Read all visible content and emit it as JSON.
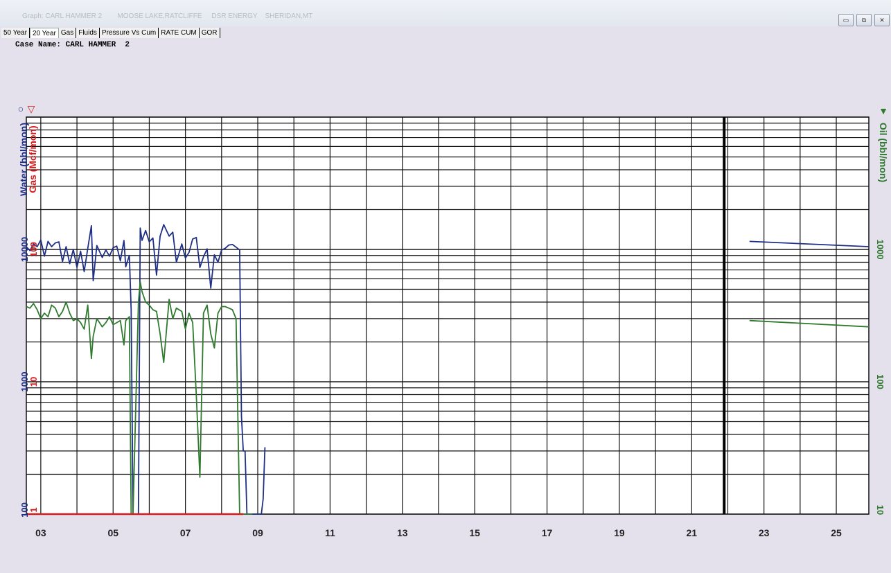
{
  "window": {
    "title": "Graph: CARL HAMMER 2        MOOSE LAKE,RATCLIFFE     DSR ENERGY    SHERIDAN,MT",
    "buttons": [
      "minimize",
      "restore",
      "close"
    ]
  },
  "tabs": [
    {
      "label": "50 Year",
      "active": false
    },
    {
      "label": "20 Year",
      "active": true
    },
    {
      "label": "Gas",
      "active": false
    },
    {
      "label": "Fluids",
      "active": false
    },
    {
      "label": "Pressure Vs Cum",
      "active": false
    },
    {
      "label": "RATE CUM",
      "active": false
    },
    {
      "label": "GOR",
      "active": false
    }
  ],
  "case_label": "Case Name: CARL HAMMER  2",
  "colors": {
    "water": "#1f2f86",
    "gas": "#d91a1a",
    "oil": "#2f7a2f",
    "grid": "#111111",
    "plot_bg": "#ffffff"
  },
  "chart_data": {
    "type": "line",
    "left_axis_water": {
      "label": "Water (bbl/mon)",
      "ticks": [
        "10000",
        "1000",
        "100"
      ],
      "color": "#1f2f86"
    },
    "left_axis_gas": {
      "label": "Gas (Mcf/mon)",
      "ticks": [
        "100",
        "10",
        "1"
      ],
      "color": "#d91a1a"
    },
    "right_axis_oil": {
      "label": "Oil (bbl/mon)",
      "ticks": [
        "1000",
        "100",
        "10"
      ],
      "color": "#2f7a2f"
    },
    "left_symbols": [
      "○",
      "▽"
    ],
    "right_symbol": "▼",
    "x_ticks": [
      "03",
      "05",
      "07",
      "09",
      "11",
      "13",
      "15",
      "17",
      "19",
      "21",
      "23",
      "25"
    ],
    "xlim": [
      2002.6,
      2025.9
    ],
    "oil_ylim": [
      10,
      10000
    ],
    "water_ylim": [
      100,
      100000
    ],
    "log_scale": true,
    "grid": true,
    "forecast_divider_year": 2021.9,
    "series": [
      {
        "name": "Water",
        "color": "#1f2f86",
        "x": [
          2002.6,
          2002.7,
          2002.8,
          2002.9,
          2003.0,
          2003.1,
          2003.2,
          2003.3,
          2003.4,
          2003.5,
          2003.6,
          2003.7,
          2003.8,
          2003.9,
          2004.0,
          2004.1,
          2004.2,
          2004.3,
          2004.4,
          2004.45,
          2004.55,
          2004.7,
          2004.8,
          2004.9,
          2005.0,
          2005.1,
          2005.2,
          2005.3,
          2005.35,
          2005.45,
          2005.5,
          2005.55,
          2005.7,
          2005.75,
          2005.8,
          2005.9,
          2006.0,
          2006.1,
          2006.2,
          2006.3,
          2006.4,
          2006.55,
          2006.65,
          2006.75,
          2006.9,
          2007.0,
          2007.1,
          2007.2,
          2007.3,
          2007.4,
          2007.5,
          2007.6,
          2007.7,
          2007.8,
          2007.9,
          2008.0,
          2008.1,
          2008.2,
          2008.3,
          2008.4,
          2008.5,
          2008.55,
          2008.6,
          2008.65,
          2008.7,
          2008.75,
          2008.8,
          2008.85,
          2009.1,
          2009.15,
          2009.2
        ],
        "y": [
          10500,
          9800,
          11000,
          10500,
          11800,
          8900,
          11500,
          10500,
          11200,
          11400,
          8100,
          10500,
          7800,
          10000,
          7300,
          9700,
          6800,
          10200,
          15100,
          5800,
          10700,
          8700,
          9900,
          8900,
          10300,
          10600,
          8200,
          11700,
          7400,
          9000,
          3500,
          90,
          100,
          14500,
          11700,
          13900,
          11400,
          12200,
          6400,
          12600,
          15400,
          12600,
          13500,
          8000,
          11000,
          8600,
          9500,
          12000,
          12300,
          7300,
          8800,
          10100,
          5100,
          9100,
          8000,
          9900,
          10200,
          10800,
          10900,
          10400,
          9900,
          550,
          300,
          300,
          95,
          95,
          95,
          95,
          95,
          130,
          320
        ]
      },
      {
        "name": "Oil",
        "color": "#2f7a2f",
        "x": [
          2002.6,
          2002.7,
          2002.8,
          2002.9,
          2003.0,
          2003.1,
          2003.2,
          2003.3,
          2003.4,
          2003.5,
          2003.6,
          2003.7,
          2003.8,
          2003.9,
          2004.0,
          2004.1,
          2004.2,
          2004.3,
          2004.4,
          2004.45,
          2004.55,
          2004.7,
          2004.8,
          2004.9,
          2005.0,
          2005.1,
          2005.2,
          2005.3,
          2005.35,
          2005.45,
          2005.5,
          2005.55,
          2005.7,
          2005.75,
          2005.8,
          2005.9,
          2006.0,
          2006.1,
          2006.2,
          2006.3,
          2006.4,
          2006.55,
          2006.65,
          2006.75,
          2006.9,
          2007.0,
          2007.1,
          2007.2,
          2007.3,
          2007.4,
          2007.5,
          2007.6,
          2007.7,
          2007.8,
          2007.9,
          2008.0,
          2008.1,
          2008.2,
          2008.3,
          2008.4,
          2008.5,
          2008.55,
          2008.6,
          2008.65,
          2008.7,
          2008.8,
          2008.85
        ],
        "y": [
          370,
          360,
          390,
          350,
          300,
          330,
          310,
          380,
          360,
          310,
          340,
          400,
          330,
          290,
          300,
          280,
          250,
          380,
          150,
          220,
          300,
          260,
          280,
          310,
          270,
          280,
          290,
          190,
          290,
          310,
          10,
          10,
          400,
          570,
          480,
          400,
          380,
          350,
          340,
          230,
          140,
          420,
          300,
          360,
          340,
          250,
          330,
          280,
          80,
          19,
          330,
          380,
          230,
          180,
          330,
          370,
          370,
          360,
          350,
          300,
          10,
          10,
          10,
          10,
          10,
          10,
          10
        ]
      },
      {
        "name": "Gas",
        "color": "#d91a1a",
        "x": [
          2002.6,
          2008.6
        ],
        "y": [
          1,
          1
        ]
      },
      {
        "name": "Water",
        "color": "#1f2f86",
        "x": [
          2022.6,
          2025.9
        ],
        "y": [
          11500,
          10500
        ]
      },
      {
        "name": "Oil",
        "color": "#2f7a2f",
        "x": [
          2022.6,
          2025.9
        ],
        "y": [
          290,
          260
        ]
      }
    ]
  }
}
